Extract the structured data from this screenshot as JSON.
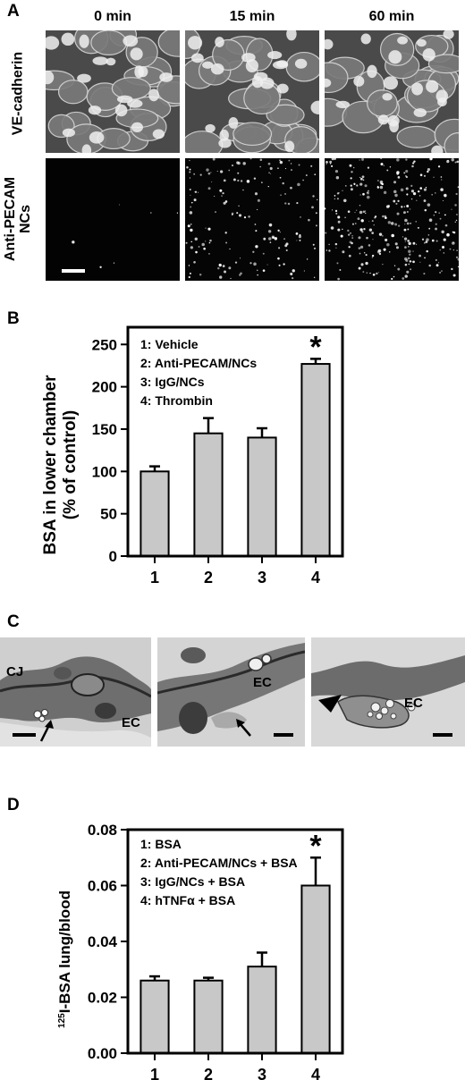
{
  "panel_a": {
    "letter": "A",
    "columns": [
      "0 min",
      "15 min",
      "60 min"
    ],
    "rows": [
      {
        "label": "VE-cadherin"
      },
      {
        "label_line1": "Anti-PECAM",
        "label_line2": "NCs"
      }
    ]
  },
  "panel_b": {
    "letter": "B"
  },
  "panel_c": {
    "letter": "C",
    "labels": {
      "cj": "CJ",
      "ec1": "EC",
      "ec2": "EC",
      "ec3": "EC"
    }
  },
  "panel_d": {
    "letter": "D"
  },
  "chart_data": [
    {
      "type": "bar",
      "panel": "B",
      "categories": [
        "1",
        "2",
        "3",
        "4"
      ],
      "values": [
        100,
        145,
        140,
        227
      ],
      "errors": [
        6,
        18,
        11,
        6
      ],
      "significance": [
        "",
        "",
        "",
        "*"
      ],
      "legend": [
        "1: Vehicle",
        "2: Anti-PECAM/NCs",
        "3: IgG/NCs",
        "4: Thrombin"
      ],
      "ylabel_line1": "BSA in lower chamber",
      "ylabel_line2": "(% of control)",
      "yticks": [
        "0",
        "50",
        "100",
        "150",
        "200",
        "250"
      ],
      "ylim": [
        0,
        260
      ],
      "bar_color": "#c8c8c8"
    },
    {
      "type": "bar",
      "panel": "D",
      "categories": [
        "1",
        "2",
        "3",
        "4"
      ],
      "values": [
        0.026,
        0.026,
        0.031,
        0.06
      ],
      "errors": [
        0.0015,
        0.001,
        0.005,
        0.01
      ],
      "significance": [
        "",
        "",
        "",
        "*"
      ],
      "legend": [
        "1: BSA",
        "2: Anti-PECAM/NCs + BSA",
        "3: IgG/NCs + BSA",
        "4: hTNFα + BSA"
      ],
      "ylabel_sup": "125",
      "ylabel": "I-BSA lung/blood",
      "yticks": [
        "0.00",
        "0.02",
        "0.04",
        "0.06",
        "0.08"
      ],
      "ylim": [
        0,
        0.08
      ],
      "bar_color": "#c8c8c8"
    }
  ]
}
